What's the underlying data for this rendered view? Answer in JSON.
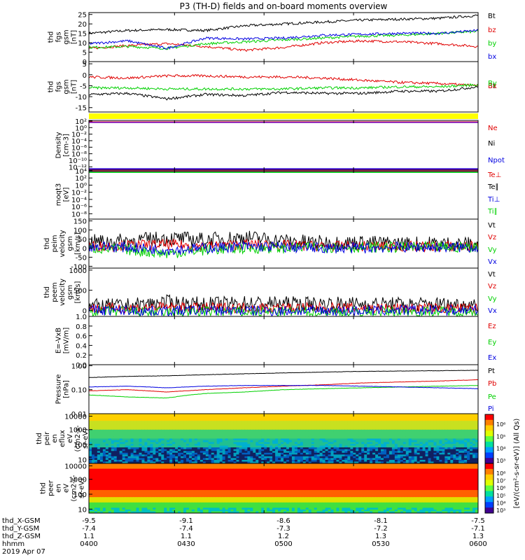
{
  "title": "P3 (TH-D) fields and on-board moments overview",
  "colors": {
    "black": "#000000",
    "red": "#e00000",
    "green": "#00d000",
    "blue": "#0000e0",
    "yellow": "#ffff00",
    "purple": "#7a00b0"
  },
  "chart_data": [
    {
      "type": "line",
      "ylabel": [
        "thd",
        "fgs",
        "gsm",
        "[nT]"
      ],
      "yticks": [
        "0",
        "5",
        "10",
        "15",
        "20",
        "25"
      ],
      "ylim": [
        0,
        26
      ],
      "legend": [
        {
          "name": "Bt",
          "color": "black"
        },
        {
          "name": "bz",
          "color": "red"
        },
        {
          "name": "by",
          "color": "green"
        },
        {
          "name": "bx",
          "color": "blue"
        }
      ],
      "x": [
        0,
        0.1,
        0.2,
        0.3,
        0.4,
        0.5,
        0.6,
        0.7,
        0.8,
        0.9,
        1
      ],
      "series": [
        {
          "name": "Bt",
          "color": "black",
          "values": [
            15,
            16.5,
            17,
            16.5,
            19,
            20,
            21,
            22,
            22.5,
            23,
            24.5
          ]
        },
        {
          "name": "bz",
          "color": "red",
          "values": [
            7,
            8.5,
            9.5,
            8,
            6,
            7.5,
            10,
            11,
            10.5,
            9.5,
            8
          ]
        },
        {
          "name": "by",
          "color": "green",
          "values": [
            7.5,
            8,
            7,
            9.5,
            10.5,
            11.5,
            12.5,
            13.5,
            14,
            15,
            16
          ]
        },
        {
          "name": "bx",
          "color": "blue",
          "values": [
            9.5,
            11,
            7,
            12.5,
            12,
            12.5,
            14,
            14.5,
            15,
            15,
            16.5
          ]
        }
      ]
    },
    {
      "type": "line",
      "ylabel": [
        "thd",
        "fgs",
        "gsm",
        "[nT]"
      ],
      "yticks": [
        "-15",
        "-10",
        "-5",
        "0",
        "5"
      ],
      "ylim": [
        -17,
        6
      ],
      "legend": [
        {
          "name": "Bt",
          "color": "black"
        },
        {
          "name": "Bx",
          "color": "red"
        },
        {
          "name": "By",
          "color": "green"
        }
      ],
      "x": [
        0,
        0.1,
        0.2,
        0.3,
        0.4,
        0.5,
        0.6,
        0.7,
        0.8,
        0.9,
        1
      ],
      "series": [
        {
          "name": "Bt",
          "color": "black",
          "values": [
            -9,
            -8.5,
            -11,
            -9,
            -9.5,
            -8,
            -8.5,
            -8.5,
            -7.5,
            -7.5,
            -5.5
          ]
        },
        {
          "name": "Bx",
          "color": "red",
          "values": [
            -1,
            -1.5,
            -0.5,
            -0.5,
            -1,
            -1,
            -1.5,
            -2.5,
            -3.5,
            -4,
            -5
          ]
        },
        {
          "name": "By",
          "color": "green",
          "values": [
            -6,
            -6,
            -6.5,
            -6.5,
            -6.5,
            -6.5,
            -6,
            -6,
            -5.5,
            -5.5,
            -4.5
          ]
        }
      ]
    },
    {
      "type": "line",
      "ylabel": [
        "Density",
        "[cm-3]"
      ],
      "yticks": [
        "10⁻¹²",
        "10⁻¹⁰",
        "10⁻⁸",
        "10⁻⁶",
        "10⁻⁴",
        "10⁻²",
        "10⁰",
        "10²"
      ],
      "ylim": [
        -13,
        2.2
      ],
      "scale": "log",
      "legend": [
        {
          "name": "Ne",
          "color": "red"
        },
        {
          "name": "Ni",
          "color": "black"
        },
        {
          "name": "Npot",
          "color": "blue"
        }
      ]
    },
    {
      "type": "line",
      "ylabel": [
        "moqt3",
        "[eV]"
      ],
      "yticks": [
        "10⁻⁸",
        "10⁻⁶",
        "10⁻⁴",
        "10⁻²",
        "10⁰",
        "10²",
        "10⁴"
      ],
      "ylim": [
        -9.5,
        4.2
      ],
      "scale": "log",
      "legend": [
        {
          "name": "Te⊥",
          "color": "red"
        },
        {
          "name": "Te∥",
          "color": "black"
        },
        {
          "name": "Ti⊥",
          "color": "blue"
        },
        {
          "name": "Ti∥",
          "color": "green"
        }
      ]
    },
    {
      "type": "line",
      "ylabel": [
        "thd",
        "peim",
        "velocity",
        "gsm",
        "[km/s]"
      ],
      "yticks": [
        "-100",
        "-50",
        "0",
        "50",
        "100",
        "150"
      ],
      "ylim": [
        -110,
        160
      ],
      "legend": [
        {
          "name": "Vt",
          "color": "black"
        },
        {
          "name": "Vz",
          "color": "red"
        },
        {
          "name": "Vy",
          "color": "green"
        },
        {
          "name": "Vx",
          "color": "blue"
        }
      ],
      "x": [
        0,
        0.1,
        0.2,
        0.3,
        0.4,
        0.5,
        0.6,
        0.7,
        0.8,
        0.9,
        1
      ],
      "series": [
        {
          "name": "Vt",
          "color": "black",
          "values": [
            35,
            40,
            55,
            45,
            60,
            40,
            30,
            30,
            25,
            25,
            20
          ]
        },
        {
          "name": "Vz",
          "color": "red",
          "values": [
            10,
            15,
            20,
            10,
            20,
            15,
            10,
            10,
            10,
            10,
            10
          ]
        },
        {
          "name": "Vy",
          "color": "green",
          "values": [
            0,
            -10,
            -30,
            -10,
            0,
            0,
            5,
            5,
            5,
            5,
            5
          ]
        },
        {
          "name": "Vx",
          "color": "blue",
          "values": [
            10,
            5,
            -10,
            0,
            10,
            5,
            0,
            0,
            5,
            5,
            5
          ]
        }
      ]
    },
    {
      "type": "line",
      "ylabel": [
        "thd",
        "peem",
        "velocity",
        "gsm",
        "[km/s]"
      ],
      "yticks": [
        "0",
        "500",
        "1000"
      ],
      "ylim": [
        -150,
        1050
      ],
      "legend": [
        {
          "name": "Vt",
          "color": "black"
        },
        {
          "name": "Vz",
          "color": "red"
        },
        {
          "name": "Vy",
          "color": "green"
        },
        {
          "name": "Vx",
          "color": "blue"
        }
      ],
      "x": [
        0,
        0.1,
        0.2,
        0.3,
        0.4,
        0.5,
        0.6,
        0.7,
        0.8,
        0.9,
        1
      ],
      "series": [
        {
          "name": "Vt",
          "color": "black",
          "values": [
            100,
            120,
            200,
            150,
            180,
            170,
            160,
            160,
            150,
            150,
            140
          ]
        },
        {
          "name": "Vz",
          "color": "red",
          "values": [
            50,
            60,
            80,
            60,
            70,
            60,
            60,
            60,
            50,
            50,
            50
          ]
        },
        {
          "name": "Vy",
          "color": "green",
          "values": [
            -20,
            -30,
            -60,
            -30,
            -40,
            -40,
            -40,
            -40,
            -30,
            -30,
            -30
          ]
        },
        {
          "name": "Vx",
          "color": "blue",
          "values": [
            0,
            0,
            -20,
            0,
            -10,
            -10,
            -10,
            -10,
            0,
            0,
            0
          ]
        }
      ]
    },
    {
      "type": "line",
      "ylabel": [
        "E=-VxB",
        "[mV/m]"
      ],
      "yticks": [
        "0.0",
        "0.2",
        "0.4",
        "0.6",
        "0.8",
        "1.0"
      ],
      "ylim": [
        0,
        1
      ],
      "legend": [
        {
          "name": "Ez",
          "color": "red"
        },
        {
          "name": "Ey",
          "color": "green"
        },
        {
          "name": "Ex",
          "color": "blue"
        }
      ]
    },
    {
      "type": "line",
      "ylabel": [
        "Pressure",
        "[nPa]"
      ],
      "yticks": [
        "0.01",
        "0.10",
        "1.00"
      ],
      "ylim": [
        0.01,
        1.1
      ],
      "scale": "log",
      "legend": [
        {
          "name": "Pt",
          "color": "black"
        },
        {
          "name": "Pb",
          "color": "red"
        },
        {
          "name": "Pe",
          "color": "green"
        },
        {
          "name": "Pi",
          "color": "blue"
        }
      ],
      "x": [
        0,
        0.1,
        0.2,
        0.3,
        0.4,
        0.5,
        0.6,
        0.7,
        0.8,
        0.9,
        1
      ],
      "series": [
        {
          "name": "Pt",
          "color": "black",
          "values": [
            0.32,
            0.36,
            0.38,
            0.42,
            0.46,
            0.5,
            0.54,
            0.58,
            0.6,
            0.62,
            0.64
          ]
        },
        {
          "name": "Pb",
          "color": "red",
          "values": [
            0.09,
            0.1,
            0.08,
            0.1,
            0.12,
            0.14,
            0.16,
            0.19,
            0.21,
            0.23,
            0.26
          ]
        },
        {
          "name": "Pe",
          "color": "green",
          "values": [
            0.06,
            0.05,
            0.045,
            0.07,
            0.08,
            0.1,
            0.11,
            0.12,
            0.13,
            0.14,
            0.15
          ]
        },
        {
          "name": "Pi",
          "color": "blue",
          "values": [
            0.13,
            0.14,
            0.12,
            0.14,
            0.15,
            0.15,
            0.15,
            0.14,
            0.13,
            0.12,
            0.11
          ]
        }
      ]
    },
    {
      "type": "heatmap",
      "ylabel": [
        "thd",
        "peir",
        "en",
        "eflux",
        "eV",
        "(cm2-s-",
        "sr-eV)"
      ],
      "yticks": [
        "10",
        "100",
        "1000",
        "10000"
      ],
      "scale": "log"
    },
    {
      "type": "heatmap",
      "ylabel": [
        "thd",
        "peer",
        "en",
        "eV",
        "(cm2-s-",
        "sr-eV)"
      ],
      "yticks": [
        "10",
        "100",
        "1000",
        "10000"
      ],
      "scale": "log"
    }
  ],
  "colorbars": [
    {
      "ticks": [
        "10⁶",
        "10⁵",
        "10⁴",
        "10³"
      ]
    },
    {
      "ticks": [
        "10⁸",
        "10⁷",
        "10⁶",
        "10⁵",
        "10⁴",
        "10³"
      ]
    }
  ],
  "colorbar_label": "[eV/(cm²-s-sr-eV)] (All Qs)",
  "ephemeris": {
    "rows": [
      {
        "label": "thd_X-GSM",
        "values": [
          "-9.5",
          "-9.1",
          "-8.6",
          "-8.1",
          "-7.5"
        ]
      },
      {
        "label": "thd_Y-GSM",
        "values": [
          "-7.4",
          "-7.4",
          "-7.3",
          "-7.2",
          "-7.1"
        ]
      },
      {
        "label": "thd_Z-GSM",
        "values": [
          "1.1",
          "1.1",
          "1.2",
          "1.3",
          "1.3"
        ]
      },
      {
        "label": "hhmm",
        "values": [
          "0400",
          "0430",
          "0500",
          "0530",
          "0600"
        ]
      }
    ],
    "date": "2019 Apr 07"
  }
}
